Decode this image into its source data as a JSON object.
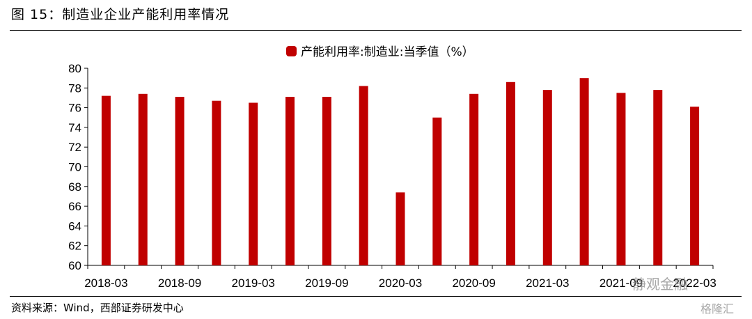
{
  "figure": {
    "title": "图 15：制造业企业产能利用率情况",
    "source": "资料来源：Wind，西部证券研发中心"
  },
  "watermarks": [
    "静观金融",
    "格隆汇"
  ],
  "chart_data": {
    "type": "bar",
    "color": "#c00000",
    "legend": "产能利用率:制造业:当季值（%）",
    "legend_position": "top-center",
    "categories": [
      "2018-03",
      "2018-06",
      "2018-09",
      "2018-12",
      "2019-03",
      "2019-06",
      "2019-09",
      "2019-12",
      "2020-03",
      "2020-06",
      "2020-09",
      "2020-12",
      "2021-03",
      "2021-06",
      "2021-09",
      "2021-12",
      "2022-03"
    ],
    "x_tick_labels": [
      "2018-03",
      "2018-09",
      "2019-03",
      "2019-09",
      "2020-03",
      "2020-09",
      "2021-03",
      "2021-09",
      "2022-03"
    ],
    "series": [
      {
        "name": "产能利用率:制造业:当季值（%）",
        "values": [
          77.2,
          77.4,
          77.1,
          76.7,
          76.5,
          77.1,
          77.1,
          78.2,
          67.4,
          75.0,
          77.4,
          78.6,
          77.8,
          79.0,
          77.5,
          77.8,
          76.1
        ]
      }
    ],
    "ylim": [
      60,
      80
    ],
    "yticks": [
      60,
      62,
      64,
      66,
      68,
      70,
      72,
      74,
      76,
      78,
      80
    ],
    "xlabel": "",
    "ylabel": "",
    "grid": false
  }
}
